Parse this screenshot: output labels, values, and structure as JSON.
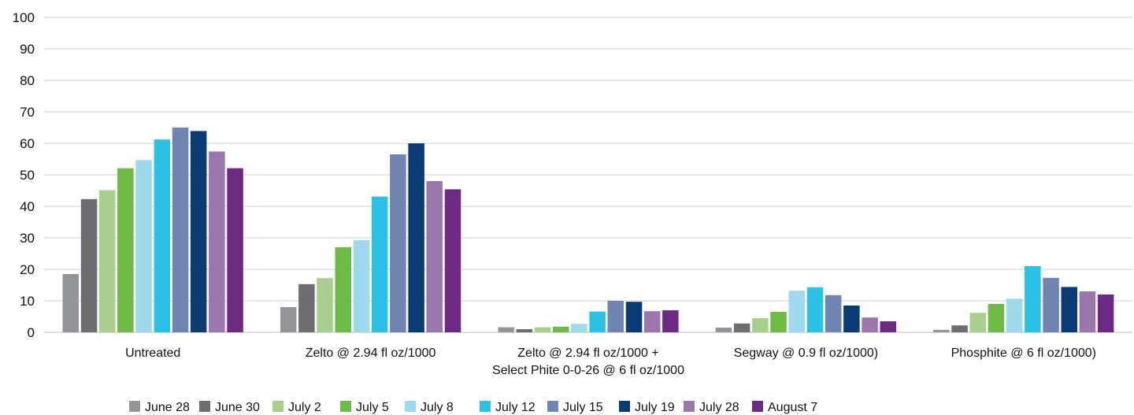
{
  "chart_data": {
    "type": "bar",
    "title": "",
    "xlabel": "",
    "ylabel": "",
    "ylim": [
      0,
      100
    ],
    "yticks": [
      0,
      10,
      20,
      30,
      40,
      50,
      60,
      70,
      80,
      90,
      100
    ],
    "grid": true,
    "legend_position": "bottom",
    "categories": [
      [
        "Untreated"
      ],
      [
        "Zelto @ 2.94 fl oz/1000"
      ],
      [
        "Zelto @ 2.94 fl oz/1000 +",
        "Select Phite 0-0-26 @ 6 fl oz/1000"
      ],
      [
        "Segway @ 0.9 fl oz/1000)"
      ],
      [
        "Phosphite @ 6 fl oz/1000)"
      ]
    ],
    "series": [
      {
        "name": "June 28",
        "color": "#939598",
        "values": [
          18.5,
          8,
          1.6,
          1.5,
          0.8
        ]
      },
      {
        "name": "June 30",
        "color": "#6d6e71",
        "values": [
          42.3,
          15.3,
          1,
          2.8,
          2.2
        ]
      },
      {
        "name": "July 2",
        "color": "#a8cf8d",
        "values": [
          45.1,
          17.2,
          1.6,
          4.5,
          6.2
        ]
      },
      {
        "name": "July 5",
        "color": "#6dbb45",
        "values": [
          52.1,
          27,
          1.8,
          6.5,
          9
        ]
      },
      {
        "name": "July 8",
        "color": "#9fd9ee",
        "values": [
          54.7,
          29.3,
          2.7,
          13.2,
          10.7
        ]
      },
      {
        "name": "July 12",
        "color": "#2bc1e6",
        "values": [
          61.2,
          43.1,
          6.6,
          14.3,
          21
        ]
      },
      {
        "name": "July 15",
        "color": "#7085b2",
        "values": [
          65,
          56.5,
          10,
          11.8,
          17.3
        ]
      },
      {
        "name": "July 19",
        "color": "#0b3b74",
        "values": [
          63.9,
          60,
          9.7,
          8.5,
          14.4
        ]
      },
      {
        "name": "July 28",
        "color": "#9b76ad",
        "values": [
          57.4,
          48,
          6.7,
          4.7,
          13
        ]
      },
      {
        "name": "August 7",
        "color": "#6d2a83",
        "values": [
          52.1,
          45.4,
          7,
          3.5,
          12
        ]
      }
    ]
  }
}
